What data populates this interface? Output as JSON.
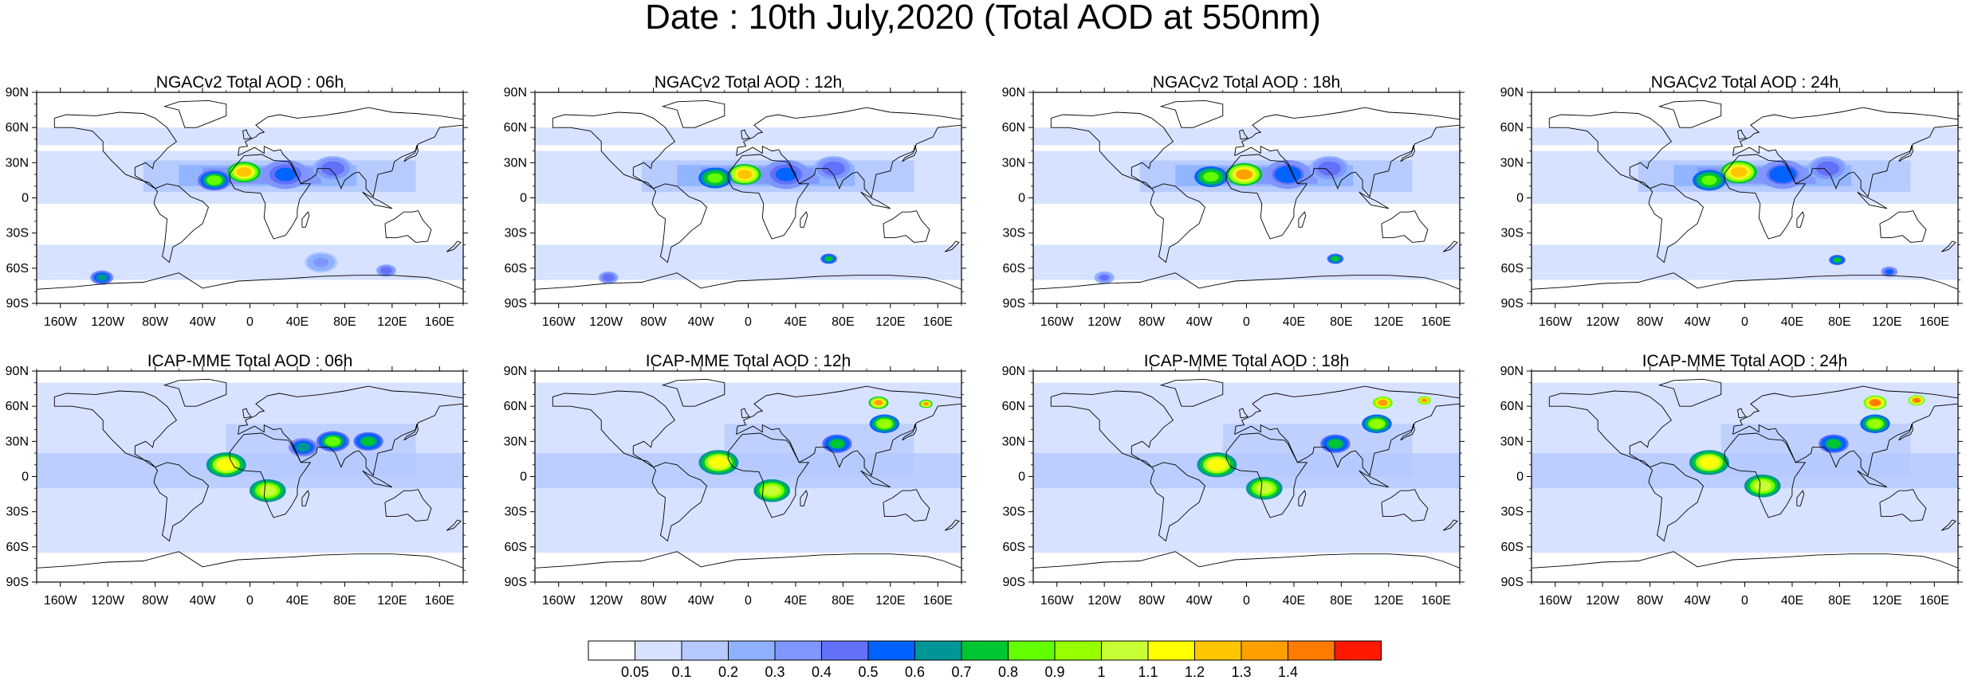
{
  "title": "Date : 10th July,2020 (Total AOD at 550nm)",
  "panels": [
    {
      "title": "NGACv2 Total AOD : 06h",
      "model": "NGACv2",
      "hour": 6
    },
    {
      "title": "NGACv2 Total AOD : 12h",
      "model": "NGACv2",
      "hour": 12
    },
    {
      "title": "NGACv2 Total AOD : 18h",
      "model": "NGACv2",
      "hour": 18
    },
    {
      "title": "NGACv2 Total AOD : 24h",
      "model": "NGACv2",
      "hour": 24
    },
    {
      "title": "ICAP-MME Total AOD : 06h",
      "model": "ICAP-MME",
      "hour": 6
    },
    {
      "title": "ICAP-MME Total AOD : 12h",
      "model": "ICAP-MME",
      "hour": 12
    },
    {
      "title": "ICAP-MME Total AOD : 18h",
      "model": "ICAP-MME",
      "hour": 18
    },
    {
      "title": "ICAP-MME Total AOD : 24h",
      "model": "ICAP-MME",
      "hour": 24
    }
  ],
  "lat_labels": [
    "90N",
    "60N",
    "30N",
    "0",
    "30S",
    "60S",
    "90S"
  ],
  "lon_labels": [
    "160W",
    "120W",
    "80W",
    "40W",
    "0",
    "40E",
    "80E",
    "120E",
    "160E"
  ],
  "lon_values": [
    -160,
    -120,
    -80,
    -40,
    0,
    40,
    80,
    120,
    160
  ],
  "lat_values": [
    90,
    60,
    30,
    0,
    -30,
    -60,
    -90
  ],
  "colorbar": {
    "labels": [
      "0.05",
      "0.1",
      "0.2",
      "0.3",
      "0.4",
      "0.5",
      "0.6",
      "0.7",
      "0.8",
      "0.9",
      "1",
      "1.1",
      "1.2",
      "1.3",
      "1.4"
    ],
    "colors": [
      "#ffffff",
      "#d6e2ff",
      "#b5c9ff",
      "#8eb2ff",
      "#7f96ff",
      "#6370f8",
      "#0063ff",
      "#009696",
      "#00c633",
      "#63ff00",
      "#96ff00",
      "#c6ff33",
      "#ffff00",
      "#ffc600",
      "#ffa000",
      "#ff7c00",
      "#ff1900"
    ]
  },
  "chart_data": {
    "type": "heatmap",
    "title": "Date : 10th July,2020 (Total AOD at 550nm)",
    "variable": "Total AOD at 550nm",
    "panels": [
      {
        "model": "NGACv2",
        "hour": 6,
        "hotspots": [
          {
            "lon": -5,
            "lat": 22,
            "aod": 1.2,
            "r": 10
          },
          {
            "lon": -30,
            "lat": 15,
            "aod": 0.8,
            "r": 10
          },
          {
            "lon": 30,
            "lat": 20,
            "aod": 0.5,
            "r": 14
          },
          {
            "lon": 70,
            "lat": 25,
            "aod": 0.45,
            "r": 12
          },
          {
            "lon": -125,
            "lat": -68,
            "aod": 0.6,
            "r": 7
          },
          {
            "lon": 115,
            "lat": -62,
            "aod": 0.45,
            "r": 6
          },
          {
            "lon": 60,
            "lat": -55,
            "aod": 0.3,
            "r": 10
          }
        ]
      },
      {
        "model": "NGACv2",
        "hour": 12,
        "hotspots": [
          {
            "lon": -3,
            "lat": 20,
            "aod": 1.25,
            "r": 10
          },
          {
            "lon": -28,
            "lat": 17,
            "aod": 0.85,
            "r": 10
          },
          {
            "lon": 32,
            "lat": 20,
            "aod": 0.5,
            "r": 14
          },
          {
            "lon": 72,
            "lat": 25,
            "aod": 0.45,
            "r": 12
          },
          {
            "lon": 68,
            "lat": -52,
            "aod": 0.7,
            "r": 5
          },
          {
            "lon": -118,
            "lat": -68,
            "aod": 0.45,
            "r": 6
          }
        ]
      },
      {
        "model": "NGACv2",
        "hour": 18,
        "hotspots": [
          {
            "lon": -2,
            "lat": 20,
            "aod": 1.3,
            "r": 11
          },
          {
            "lon": -30,
            "lat": 18,
            "aod": 0.85,
            "r": 10
          },
          {
            "lon": 35,
            "lat": 20,
            "aod": 0.55,
            "r": 14
          },
          {
            "lon": 70,
            "lat": 25,
            "aod": 0.45,
            "r": 12
          },
          {
            "lon": 75,
            "lat": -52,
            "aod": 0.75,
            "r": 5
          },
          {
            "lon": -120,
            "lat": -68,
            "aod": 0.4,
            "r": 6
          }
        ]
      },
      {
        "model": "NGACv2",
        "hour": 24,
        "hotspots": [
          {
            "lon": -5,
            "lat": 22,
            "aod": 1.25,
            "r": 11
          },
          {
            "lon": -30,
            "lat": 15,
            "aod": 0.85,
            "r": 10
          },
          {
            "lon": 32,
            "lat": 20,
            "aod": 0.55,
            "r": 14
          },
          {
            "lon": 70,
            "lat": 25,
            "aod": 0.45,
            "r": 12
          },
          {
            "lon": 78,
            "lat": -53,
            "aod": 0.7,
            "r": 5
          },
          {
            "lon": 122,
            "lat": -63,
            "aod": 0.5,
            "r": 5
          }
        ]
      },
      {
        "model": "ICAP-MME",
        "hour": 6,
        "hotspots": [
          {
            "lon": -20,
            "lat": 10,
            "aod": 1.1,
            "r": 12
          },
          {
            "lon": 15,
            "lat": -12,
            "aod": 1.0,
            "r": 11
          },
          {
            "lon": 70,
            "lat": 30,
            "aod": 0.8,
            "r": 10
          },
          {
            "lon": 100,
            "lat": 30,
            "aod": 0.7,
            "r": 9
          },
          {
            "lon": 45,
            "lat": 25,
            "aod": 0.6,
            "r": 9
          }
        ]
      },
      {
        "model": "ICAP-MME",
        "hour": 12,
        "hotspots": [
          {
            "lon": -25,
            "lat": 12,
            "aod": 1.1,
            "r": 12
          },
          {
            "lon": 20,
            "lat": -12,
            "aod": 1.0,
            "r": 11
          },
          {
            "lon": 115,
            "lat": 45,
            "aod": 0.9,
            "r": 9
          },
          {
            "lon": 110,
            "lat": 63,
            "aod": 1.3,
            "r": 6
          },
          {
            "lon": 150,
            "lat": 62,
            "aod": 1.3,
            "r": 4
          },
          {
            "lon": 75,
            "lat": 28,
            "aod": 0.7,
            "r": 9
          }
        ]
      },
      {
        "model": "ICAP-MME",
        "hour": 18,
        "hotspots": [
          {
            "lon": -25,
            "lat": 10,
            "aod": 1.1,
            "r": 12
          },
          {
            "lon": 15,
            "lat": -10,
            "aod": 1.0,
            "r": 11
          },
          {
            "lon": 110,
            "lat": 45,
            "aod": 0.9,
            "r": 9
          },
          {
            "lon": 115,
            "lat": 63,
            "aod": 1.35,
            "r": 6
          },
          {
            "lon": 150,
            "lat": 65,
            "aod": 1.35,
            "r": 4
          },
          {
            "lon": 75,
            "lat": 28,
            "aod": 0.7,
            "r": 9
          }
        ]
      },
      {
        "model": "ICAP-MME",
        "hour": 24,
        "hotspots": [
          {
            "lon": -30,
            "lat": 12,
            "aod": 1.1,
            "r": 12
          },
          {
            "lon": 15,
            "lat": -8,
            "aod": 1.0,
            "r": 11
          },
          {
            "lon": 110,
            "lat": 45,
            "aod": 0.9,
            "r": 9
          },
          {
            "lon": 110,
            "lat": 63,
            "aod": 1.4,
            "r": 7
          },
          {
            "lon": 145,
            "lat": 65,
            "aod": 1.4,
            "r": 5
          },
          {
            "lon": 75,
            "lat": 28,
            "aod": 0.7,
            "r": 9
          }
        ]
      }
    ]
  }
}
